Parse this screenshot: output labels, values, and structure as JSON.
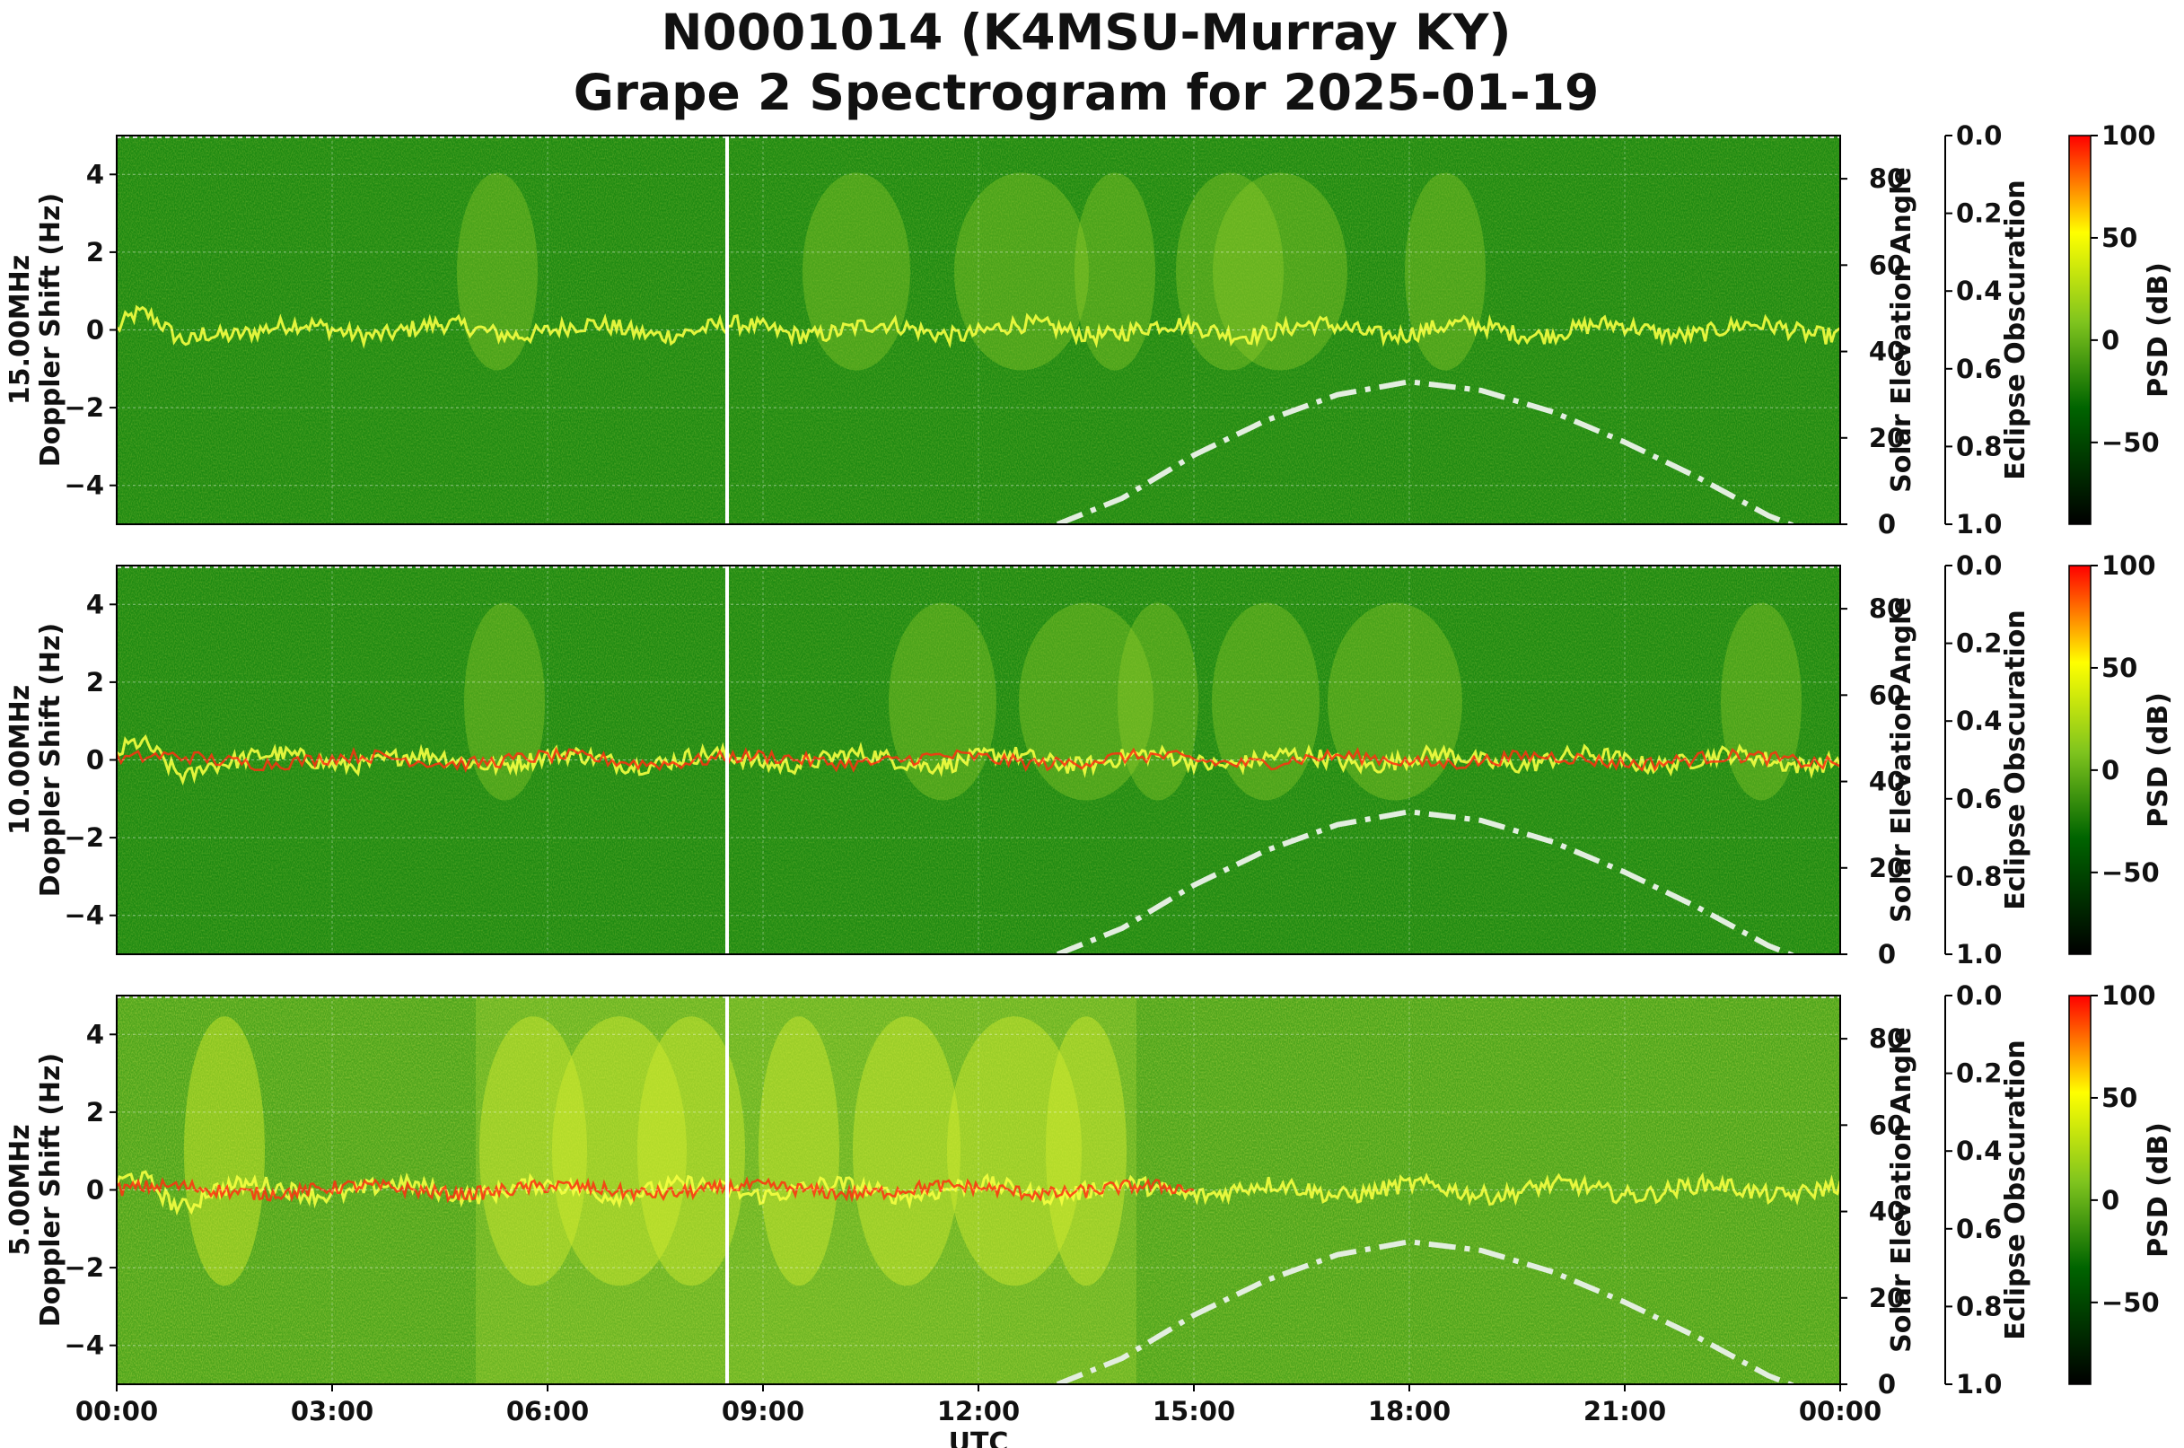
{
  "title_line1": "N0001014 (K4MSU-Murray KY)",
  "title_line2": "Grape 2 Spectrogram for 2025-01-19",
  "chart_data": {
    "type": "heatmap",
    "xlabel": "UTC",
    "x_ticks": [
      "00:00",
      "03:00",
      "06:00",
      "09:00",
      "12:00",
      "15:00",
      "18:00",
      "21:00",
      "00:00"
    ],
    "xlim_hours": [
      0,
      24
    ],
    "colormap": [
      "#000000",
      "#006400",
      "#7fc41e",
      "#ffff00",
      "#ff0000"
    ],
    "white_marker_utc_hours": 8.5,
    "panels": [
      {
        "name": "15.00MHz",
        "ylabel_line1": "15.00MHz",
        "ylabel_line2": "Doppler Shift (Hz)",
        "ylim": [
          -5,
          5
        ],
        "y_ticks": [
          "4",
          "2",
          "0",
          "−2",
          "−4"
        ],
        "y2label": "Solar Elevation Angle",
        "y2lim": [
          0,
          90
        ],
        "y2_ticks": [
          "0",
          "20",
          "40",
          "60",
          "80"
        ],
        "y3label": "Eclipse Obscuration",
        "y3_ticks": [
          "0.0",
          "0.2",
          "0.4",
          "0.6",
          "0.8",
          "1.0"
        ],
        "cbar_label": "PSD (dB)",
        "cbar_ticks": [
          "100",
          "50",
          "0",
          "−50"
        ],
        "cbar_range": [
          -90,
          100
        ],
        "solar_elevation": {
          "x": [
            13.1,
            14,
            15,
            16,
            17,
            18,
            19,
            20,
            21,
            22,
            23,
            23.6
          ],
          "y": [
            0,
            6,
            16,
            24,
            30,
            33,
            31,
            26,
            19,
            11,
            2,
            -2
          ]
        }
      },
      {
        "name": "10.00MHz",
        "ylabel_line1": "10.00MHz",
        "ylabel_line2": "Doppler Shift (Hz)",
        "ylim": [
          -5,
          5
        ],
        "y_ticks": [
          "4",
          "2",
          "0",
          "−2",
          "−4"
        ],
        "y2label": "Solar Elevation Angle",
        "y2lim": [
          0,
          90
        ],
        "y2_ticks": [
          "0",
          "20",
          "40",
          "60",
          "80"
        ],
        "y3label": "Eclipse Obscuration",
        "y3_ticks": [
          "0.0",
          "0.2",
          "0.4",
          "0.6",
          "0.8",
          "1.0"
        ],
        "cbar_label": "PSD (dB)",
        "cbar_ticks": [
          "100",
          "50",
          "0",
          "−50"
        ],
        "cbar_range": [
          -90,
          100
        ],
        "solar_elevation": {
          "x": [
            13.1,
            14,
            15,
            16,
            17,
            18,
            19,
            20,
            21,
            22,
            23,
            23.6
          ],
          "y": [
            0,
            6,
            16,
            24,
            30,
            33,
            31,
            26,
            19,
            11,
            2,
            -2
          ]
        }
      },
      {
        "name": "5.00MHz",
        "ylabel_line1": "5.00MHz",
        "ylabel_line2": "Doppler Shift (Hz)",
        "ylim": [
          -5,
          5
        ],
        "y_ticks": [
          "4",
          "2",
          "0",
          "−2",
          "−4"
        ],
        "y2label": "Solar Elevation Angle",
        "y2lim": [
          0,
          90
        ],
        "y2_ticks": [
          "0",
          "20",
          "40",
          "60",
          "80"
        ],
        "y3label": "Eclipse Obscuration",
        "y3_ticks": [
          "0.0",
          "0.2",
          "0.4",
          "0.6",
          "0.8",
          "1.0"
        ],
        "cbar_label": "PSD (dB)",
        "cbar_ticks": [
          "100",
          "50",
          "0",
          "−50"
        ],
        "cbar_range": [
          -90,
          100
        ],
        "solar_elevation": {
          "x": [
            13.1,
            14,
            15,
            16,
            17,
            18,
            19,
            20,
            21,
            22,
            23,
            23.6
          ],
          "y": [
            0,
            6,
            16,
            24,
            30,
            33,
            31,
            26,
            19,
            11,
            2,
            -2
          ]
        }
      }
    ]
  }
}
